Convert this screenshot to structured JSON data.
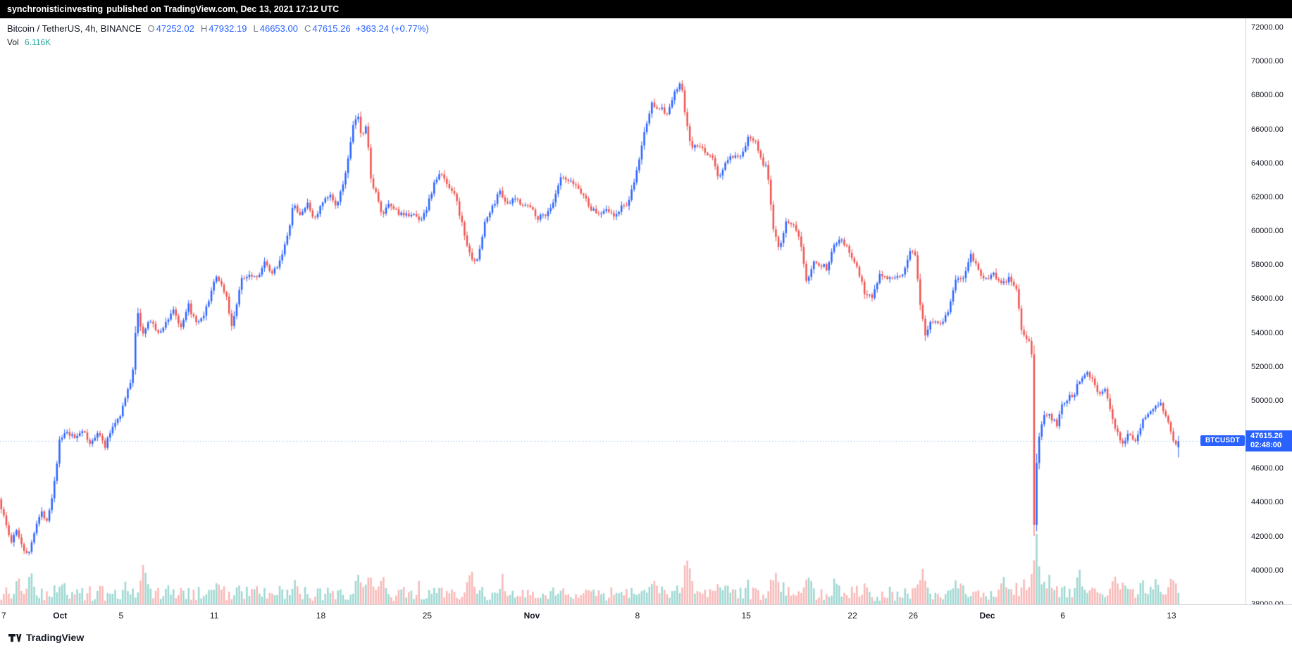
{
  "topbar": {
    "username": "synchronisticinvesting",
    "published_text": "published on TradingView.com, Dec 13, 2021 17:12 UTC"
  },
  "legend": {
    "title": "Bitcoin / TetherUS, 4h, BINANCE",
    "ohlc": {
      "o_label": "O",
      "open": "47252.02",
      "h_label": "H",
      "high": "47932.19",
      "l_label": "L",
      "low": "46653.00",
      "c_label": "C",
      "close": "47615.26",
      "change": "+363.24 (+0.77%)"
    },
    "volume_label": "Vol",
    "volume_value": "6.116K"
  },
  "price_axis": {
    "ticks": [
      "72000.00",
      "70000.00",
      "68000.00",
      "66000.00",
      "64000.00",
      "62000.00",
      "60000.00",
      "58000.00",
      "56000.00",
      "54000.00",
      "52000.00",
      "50000.00",
      "48000.00",
      "46000.00",
      "44000.00",
      "42000.00",
      "40000.00",
      "38000.00"
    ]
  },
  "time_axis": {
    "labels": [
      {
        "text": "7",
        "day": 0,
        "strong": false
      },
      {
        "text": "Oct",
        "day": 4,
        "strong": true
      },
      {
        "text": "5",
        "day": 8,
        "strong": false
      },
      {
        "text": "11",
        "day": 14,
        "strong": false
      },
      {
        "text": "18",
        "day": 21,
        "strong": false
      },
      {
        "text": "25",
        "day": 28,
        "strong": false
      },
      {
        "text": "Nov",
        "day": 35,
        "strong": true
      },
      {
        "text": "8",
        "day": 42,
        "strong": false
      },
      {
        "text": "15",
        "day": 49,
        "strong": false
      },
      {
        "text": "22",
        "day": 56,
        "strong": false
      },
      {
        "text": "26",
        "day": 60,
        "strong": false
      },
      {
        "text": "Dec",
        "day": 65,
        "strong": true
      },
      {
        "text": "6",
        "day": 70,
        "strong": false
      },
      {
        "text": "13",
        "day": 77,
        "strong": false
      }
    ]
  },
  "price_line": {
    "badge": "BTCUSDT",
    "price": "47615.26",
    "countdown": "02:48:00",
    "value": 47615.26
  },
  "footer": {
    "brand": "TradingView"
  },
  "colors": {
    "up": "#2962ff",
    "down": "#ef5350",
    "vol_up": "rgba(38,166,154,0.45)",
    "vol_down": "rgba(239,83,80,0.42)",
    "price_line": "rgba(41,98,255,0.55)",
    "accent": "#2962ff"
  },
  "chart_data": {
    "type": "candlestick",
    "symbol": "BTCUSDT",
    "exchange": "BINANCE",
    "interval": "4h",
    "ylim": [
      38000,
      72000
    ],
    "days_total": 82,
    "days_data": 77.7,
    "candles_per_day": 6,
    "last": {
      "open": 47252.02,
      "high": 47932.19,
      "low": 46653.0,
      "close": 47615.26
    },
    "price_path_anchors": [
      [
        0,
        44200
      ],
      [
        0.4,
        43000
      ],
      [
        0.8,
        41600
      ],
      [
        1.2,
        42400
      ],
      [
        1.6,
        41300
      ],
      [
        2,
        41000
      ],
      [
        2.4,
        42600
      ],
      [
        2.8,
        43400
      ],
      [
        3.2,
        43000
      ],
      [
        3.6,
        44800
      ],
      [
        4,
        47600
      ],
      [
        4.4,
        48100
      ],
      [
        5,
        47800
      ],
      [
        5.5,
        48300
      ],
      [
        6,
        47400
      ],
      [
        6.5,
        48200
      ],
      [
        7,
        47300
      ],
      [
        7.5,
        48500
      ],
      [
        8,
        49200
      ],
      [
        8.4,
        50300
      ],
      [
        8.8,
        51500
      ],
      [
        9.1,
        55300
      ],
      [
        9.5,
        53900
      ],
      [
        10,
        54800
      ],
      [
        10.5,
        53900
      ],
      [
        11,
        54600
      ],
      [
        11.5,
        55400
      ],
      [
        12,
        54200
      ],
      [
        12.5,
        55600
      ],
      [
        13,
        54500
      ],
      [
        13.5,
        54900
      ],
      [
        14,
        56500
      ],
      [
        14.4,
        57400
      ],
      [
        15,
        56100
      ],
      [
        15.3,
        54300
      ],
      [
        15.7,
        55800
      ],
      [
        16,
        57200
      ],
      [
        16.5,
        57500
      ],
      [
        17,
        57300
      ],
      [
        17.5,
        58100
      ],
      [
        18,
        57400
      ],
      [
        18.5,
        58300
      ],
      [
        19,
        59600
      ],
      [
        19.4,
        61600
      ],
      [
        19.8,
        60900
      ],
      [
        20.3,
        61600
      ],
      [
        20.8,
        60700
      ],
      [
        21.3,
        61600
      ],
      [
        21.8,
        62100
      ],
      [
        22.3,
        61500
      ],
      [
        22.7,
        62900
      ],
      [
        23,
        64200
      ],
      [
        23.3,
        66000
      ],
      [
        23.6,
        66900
      ],
      [
        23.9,
        65600
      ],
      [
        24.2,
        66400
      ],
      [
        24.5,
        63000
      ],
      [
        24.8,
        62400
      ],
      [
        25.2,
        60900
      ],
      [
        25.7,
        61500
      ],
      [
        26.2,
        61200
      ],
      [
        26.7,
        60800
      ],
      [
        27.2,
        61100
      ],
      [
        27.7,
        60600
      ],
      [
        28.2,
        61400
      ],
      [
        28.7,
        62900
      ],
      [
        29.1,
        63400
      ],
      [
        29.5,
        62800
      ],
      [
        30,
        62300
      ],
      [
        30.5,
        60400
      ],
      [
        31,
        58600
      ],
      [
        31.5,
        58200
      ],
      [
        32,
        60500
      ],
      [
        32.5,
        61400
      ],
      [
        33,
        62400
      ],
      [
        33.5,
        61500
      ],
      [
        34,
        61900
      ],
      [
        34.5,
        61600
      ],
      [
        35,
        61400
      ],
      [
        35.5,
        60800
      ],
      [
        36,
        61000
      ],
      [
        36.5,
        61600
      ],
      [
        37,
        63100
      ],
      [
        37.5,
        62900
      ],
      [
        38,
        62700
      ],
      [
        38.5,
        62100
      ],
      [
        39,
        61300
      ],
      [
        39.5,
        61000
      ],
      [
        40,
        61400
      ],
      [
        40.5,
        60800
      ],
      [
        41,
        61400
      ],
      [
        41.5,
        61700
      ],
      [
        42,
        63500
      ],
      [
        42.5,
        65800
      ],
      [
        43,
        67500
      ],
      [
        43.5,
        67300
      ],
      [
        44,
        66900
      ],
      [
        44.5,
        68100
      ],
      [
        44.9,
        68800
      ],
      [
        45.3,
        66200
      ],
      [
        45.6,
        64900
      ],
      [
        46,
        65000
      ],
      [
        46.5,
        64700
      ],
      [
        47,
        64300
      ],
      [
        47.4,
        63000
      ],
      [
        47.8,
        64000
      ],
      [
        48.3,
        64400
      ],
      [
        48.8,
        64200
      ],
      [
        49.3,
        65400
      ],
      [
        49.8,
        65500
      ],
      [
        50.2,
        64200
      ],
      [
        50.6,
        63600
      ],
      [
        51,
        60200
      ],
      [
        51.4,
        59000
      ],
      [
        51.8,
        60500
      ],
      [
        52.3,
        60300
      ],
      [
        52.8,
        59300
      ],
      [
        53.2,
        57000
      ],
      [
        53.6,
        58200
      ],
      [
        54,
        58100
      ],
      [
        54.5,
        57800
      ],
      [
        55,
        59300
      ],
      [
        55.5,
        59600
      ],
      [
        56,
        58700
      ],
      [
        56.5,
        57900
      ],
      [
        57,
        56400
      ],
      [
        57.5,
        56100
      ],
      [
        58,
        57500
      ],
      [
        58.5,
        57300
      ],
      [
        59,
        57100
      ],
      [
        59.5,
        57400
      ],
      [
        60,
        58900
      ],
      [
        60.3,
        58800
      ],
      [
        60.7,
        55500
      ],
      [
        61,
        53800
      ],
      [
        61.4,
        54800
      ],
      [
        62,
        54600
      ],
      [
        62.5,
        55200
      ],
      [
        63,
        57200
      ],
      [
        63.5,
        57100
      ],
      [
        64,
        58700
      ],
      [
        64.5,
        57700
      ],
      [
        65,
        57100
      ],
      [
        65.5,
        57500
      ],
      [
        66,
        56800
      ],
      [
        66.5,
        57200
      ],
      [
        67,
        56500
      ],
      [
        67.4,
        53800
      ],
      [
        67.8,
        53600
      ],
      [
        68,
        52800
      ],
      [
        68.17,
        42500
      ],
      [
        68.35,
        46800
      ],
      [
        68.6,
        48500
      ],
      [
        68.9,
        49200
      ],
      [
        69.3,
        49000
      ],
      [
        69.7,
        48500
      ],
      [
        70,
        49800
      ],
      [
        70.4,
        50200
      ],
      [
        70.8,
        50400
      ],
      [
        71.2,
        51300
      ],
      [
        71.6,
        51800
      ],
      [
        72,
        51300
      ],
      [
        72.4,
        50400
      ],
      [
        72.8,
        50700
      ],
      [
        73.2,
        49300
      ],
      [
        73.6,
        48200
      ],
      [
        74,
        47500
      ],
      [
        74.4,
        48100
      ],
      [
        74.8,
        47600
      ],
      [
        75.2,
        48500
      ],
      [
        75.6,
        49300
      ],
      [
        76,
        49500
      ],
      [
        76.4,
        49900
      ],
      [
        76.8,
        49300
      ],
      [
        77.1,
        48500
      ],
      [
        77.4,
        47400
      ],
      [
        77.7,
        47615
      ]
    ],
    "volume_spikes": [
      [
        1.2,
        0.4
      ],
      [
        2,
        0.45
      ],
      [
        4,
        0.4
      ],
      [
        9.5,
        0.55
      ],
      [
        11,
        0.3
      ],
      [
        14.4,
        0.35
      ],
      [
        19.4,
        0.4
      ],
      [
        23.6,
        0.45
      ],
      [
        24.4,
        0.5
      ],
      [
        25.2,
        0.45
      ],
      [
        31,
        0.5
      ],
      [
        33,
        0.35
      ],
      [
        37,
        0.3
      ],
      [
        43,
        0.4
      ],
      [
        45.3,
        0.6
      ],
      [
        47.4,
        0.35
      ],
      [
        51,
        0.55
      ],
      [
        53.2,
        0.45
      ],
      [
        55,
        0.3
      ],
      [
        57,
        0.35
      ],
      [
        60.7,
        0.6
      ],
      [
        63,
        0.35
      ],
      [
        66,
        0.4
      ],
      [
        67.4,
        0.35
      ],
      [
        68.2,
        1.0
      ],
      [
        68.5,
        0.5
      ],
      [
        69,
        0.35
      ],
      [
        71,
        0.45
      ],
      [
        72,
        0.4
      ],
      [
        73.3,
        0.5
      ],
      [
        74,
        0.4
      ],
      [
        75.2,
        0.35
      ],
      [
        76.2,
        0.4
      ],
      [
        77.2,
        0.45
      ]
    ]
  }
}
